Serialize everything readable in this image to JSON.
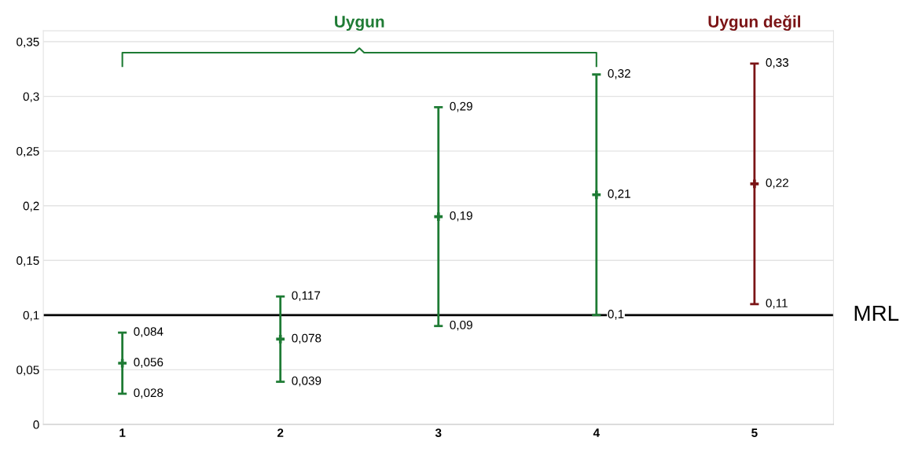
{
  "chart_data": {
    "type": "scatter",
    "categories": [
      "1",
      "2",
      "3",
      "4",
      "5"
    ],
    "values": [
      0.056,
      0.078,
      0.19,
      0.21,
      0.22
    ],
    "value_labels": [
      "0,056",
      "0,078",
      "0,19",
      "0,21",
      "0,22"
    ],
    "errors": [
      [
        0.028,
        0.084
      ],
      [
        0.039,
        0.117
      ],
      [
        0.09,
        0.29
      ],
      [
        0.1,
        0.32
      ],
      [
        0.11,
        0.33
      ]
    ],
    "colors": [
      "#1e7b34",
      "#1e7b34",
      "#1e7b34",
      "#1e7b34",
      "#7b1416"
    ],
    "marker": "cross",
    "ylim": [
      0,
      0.36
    ],
    "yticks": [
      0,
      {
        "value": 0.05,
        "label": "0,05"
      },
      {
        "value": 0.1,
        "label": "0,1"
      },
      {
        "value": 0.15,
        "label": "0,15"
      },
      {
        "value": 0.2,
        "label": "0,2"
      },
      {
        "value": 0.25,
        "label": "0,25"
      },
      {
        "value": 0.3,
        "label": "0,3"
      },
      {
        "value": 0.35,
        "label": "0,35"
      }
    ],
    "grid": "y",
    "ref_lines": [
      {
        "axis": "y",
        "value": 0.1,
        "label": "MRL",
        "color": "#000000"
      }
    ],
    "annotations": [
      "Uygun",
      "Uygun değil",
      {
        "text": "0,028",
        "x": "1",
        "y": 0.028
      },
      {
        "text": "0,084",
        "x": "1",
        "y": 0.084
      },
      {
        "text": "0,039",
        "x": "2",
        "y": 0.039
      },
      {
        "text": "0,117",
        "x": "2",
        "y": 0.117
      },
      {
        "text": "0,09",
        "x": "3",
        "y": 0.09
      },
      {
        "text": "0,29",
        "x": "3",
        "y": 0.29
      },
      {
        "text": "0,1",
        "x": "4",
        "y": 0.1
      },
      {
        "text": "0,32",
        "x": "4",
        "y": 0.32
      },
      {
        "text": "0,11",
        "x": "5",
        "y": 0.11
      },
      {
        "text": "0,33",
        "x": "5",
        "y": 0.33
      }
    ]
  }
}
